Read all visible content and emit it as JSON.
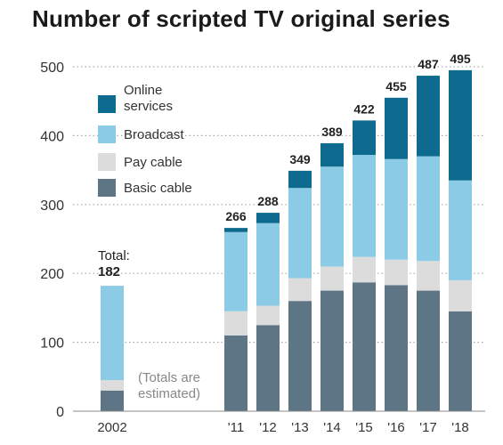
{
  "title": "Number of scripted TV original series",
  "colors": {
    "online": "#0e6b8f",
    "broadcast": "#8ccbe6",
    "pay_cable": "#dcdcdc",
    "basic_cable": "#5d7585",
    "gridline": "#aaaaaa",
    "axis": "#888888"
  },
  "legend": {
    "online": "Online\nservices",
    "broadcast": "Broadcast",
    "pay_cable": "Pay cable",
    "basic_cable": "Basic cable"
  },
  "annotations": {
    "total_prefix": "Total:",
    "total_value": "182",
    "note": "(Totals are\nestimated)"
  },
  "chart_data": {
    "type": "bar",
    "stacked": true,
    "title": "Number of scripted TV original series",
    "xlabel": "",
    "ylabel": "",
    "ylim": [
      0,
      500
    ],
    "yticks": [
      0,
      100,
      200,
      300,
      400,
      500
    ],
    "grid": "horizontal-dotted",
    "legend_position": "top-left",
    "categories": [
      "2002",
      "'11",
      "'12",
      "'13",
      "'14",
      "'15",
      "'16",
      "'17",
      "'18"
    ],
    "totals": [
      182,
      266,
      288,
      349,
      389,
      422,
      455,
      487,
      495
    ],
    "total_labels": [
      "",
      "266",
      "288",
      "349",
      "389",
      "422",
      "455",
      "487",
      "495"
    ],
    "series": [
      {
        "name": "Basic cable",
        "key": "basic_cable",
        "values": [
          30,
          110,
          125,
          160,
          175,
          187,
          183,
          175,
          145
        ]
      },
      {
        "name": "Pay cable",
        "key": "pay_cable",
        "values": [
          15,
          35,
          28,
          33,
          35,
          37,
          37,
          43,
          45
        ]
      },
      {
        "name": "Broadcast",
        "key": "broadcast",
        "values": [
          137,
          115,
          120,
          131,
          145,
          148,
          146,
          152,
          145
        ]
      },
      {
        "name": "Online services",
        "key": "online",
        "values": [
          0,
          6,
          15,
          25,
          34,
          50,
          89,
          117,
          160
        ]
      }
    ]
  }
}
